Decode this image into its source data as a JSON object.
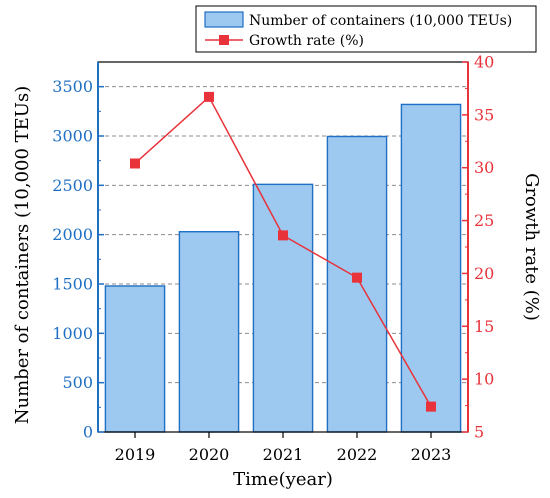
{
  "colors": {
    "bar_fill": "#9dc8f0",
    "bar_stroke": "#1f6fc4",
    "left_axis": "#1f6fc4",
    "right_axis": "#e8333a",
    "line": "#e8333a",
    "grid": "#8c8c8c",
    "frame": "#000000"
  },
  "chart_data": {
    "type": "bar",
    "title": "",
    "categories": [
      "2019",
      "2020",
      "2021",
      "2022",
      "2023"
    ],
    "xlabel": "Time(year)",
    "ylabel": "Number of containers (10,000 TEUs)",
    "y2label": "Growth rate (%)",
    "ylim": [
      0,
      3750
    ],
    "y2lim": [
      5,
      40
    ],
    "yticks": [
      "0",
      "500",
      "1000",
      "1500",
      "2000",
      "2500",
      "3000",
      "3500"
    ],
    "y2ticks": [
      "5",
      "10",
      "15",
      "20",
      "25",
      "30",
      "35",
      "40"
    ],
    "grid": true,
    "legend_position": "top-right",
    "series": [
      {
        "name": "Number of containers (10,000 TEUs)",
        "type": "bar",
        "axis": "left",
        "values": [
          1480,
          2030,
          2510,
          2995,
          3320
        ]
      },
      {
        "name": "Growth rate (%)",
        "type": "line",
        "axis": "right",
        "marker": "square",
        "values": [
          30.4,
          36.7,
          23.6,
          19.6,
          7.4
        ]
      }
    ]
  }
}
